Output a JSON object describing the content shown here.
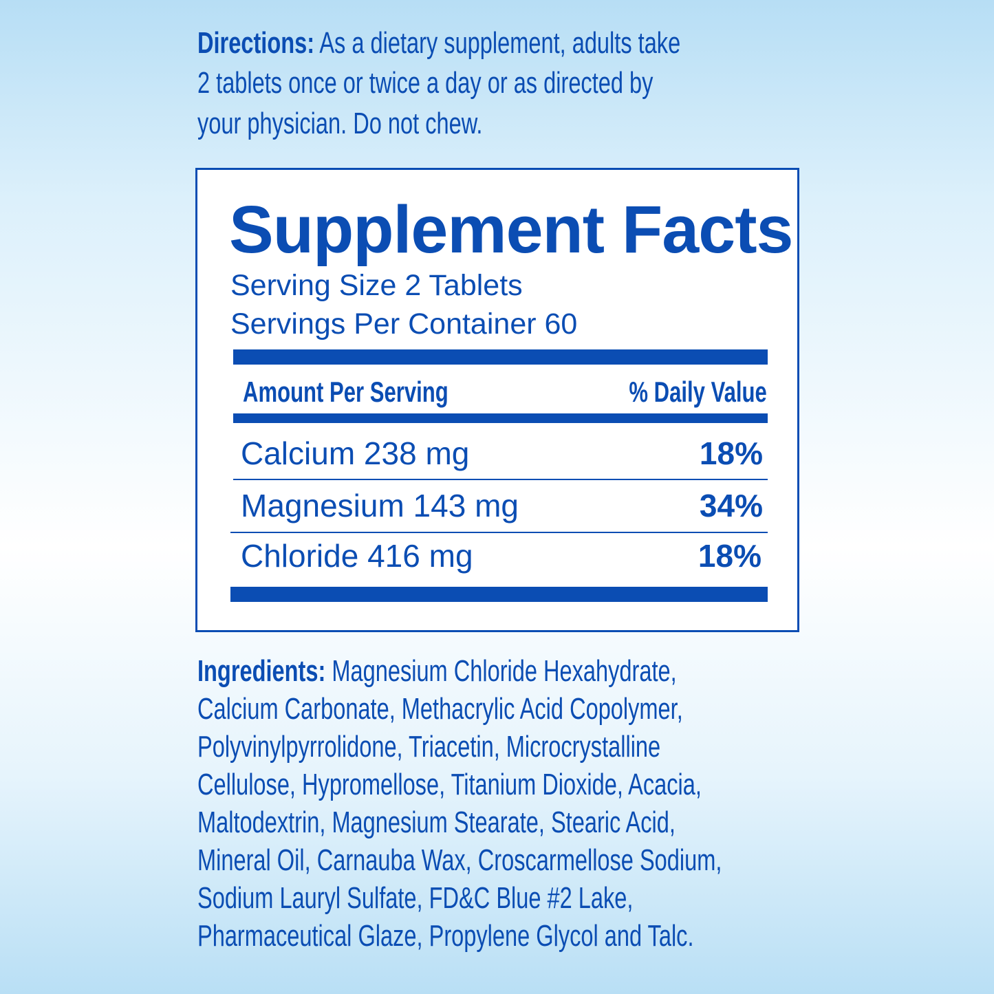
{
  "directions": {
    "label": "Directions:",
    "lines": [
      "As a dietary supplement, adults take",
      "2 tablets once or twice a day or as directed by",
      "your physician. Do not chew."
    ]
  },
  "facts": {
    "title": "Supplement Facts",
    "serving_size": "Serving Size 2 Tablets",
    "servings_per_container": "Servings Per Container 60",
    "header_left": "Amount Per Serving",
    "header_right": "% Daily Value",
    "rows": [
      {
        "name": "Calcium 238 mg",
        "dv": "18%"
      },
      {
        "name": "Magnesium 143 mg",
        "dv": "34%"
      },
      {
        "name": "Chloride 416 mg",
        "dv": "18%"
      }
    ]
  },
  "ingredients": {
    "label": "Ingredients:",
    "lines": [
      "Magnesium Chloride Hexahydrate,",
      "Calcium Carbonate, Methacrylic Acid Copolymer,",
      "Polyvinylpyrrolidone, Triacetin, Microcrystalline",
      "Cellulose, Hypromellose, Titanium Dioxide, Acacia,",
      "Maltodextrin, Magnesium Stearate, Stearic Acid,",
      "Mineral Oil, Carnauba Wax, Croscarmellose Sodium,",
      "Sodium Lauryl Sulfate, FD&C Blue #2 Lake,",
      "Pharmaceutical Glaze, Propylene Glycol and Talc."
    ]
  },
  "colors": {
    "text": "#0b4db3",
    "background_top": "#b7def5",
    "panel": "#ffffff"
  }
}
